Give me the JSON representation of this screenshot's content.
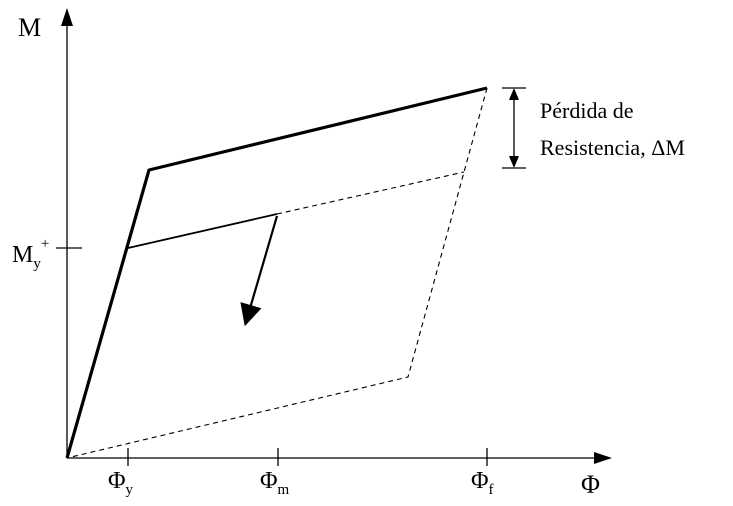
{
  "axes": {
    "y_label": "M",
    "x_label": "Φ"
  },
  "y_ticks": [
    {
      "main": "M",
      "sub": "y",
      "sup": "+"
    }
  ],
  "x_ticks": [
    {
      "main": "Φ",
      "sub": "y"
    },
    {
      "main": "Φ",
      "sub": "m"
    },
    {
      "main": "Φ",
      "sub": "f"
    }
  ],
  "annotation": {
    "line1": "Pérdida de",
    "line2_text": "Resistencia, ",
    "line2_symbol": "ΔM"
  },
  "colors": {
    "stroke": "#000000",
    "background": "#ffffff"
  }
}
